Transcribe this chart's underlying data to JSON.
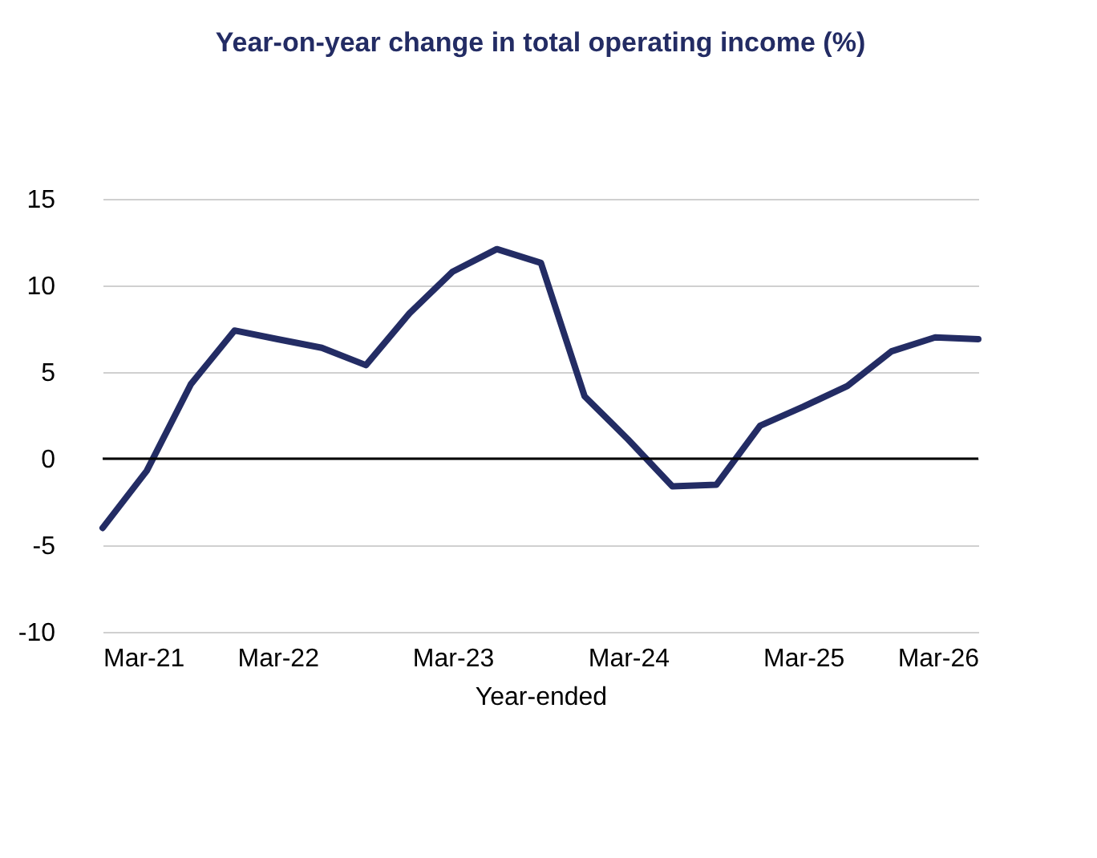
{
  "chart_data": {
    "type": "line",
    "title": "Year-on-year change in total operating income (%)",
    "xlabel": "Year-ended",
    "x": [
      "2021-03",
      "2021-06",
      "2021-09",
      "2021-12",
      "2022-03",
      "2022-06",
      "2022-09",
      "2022-12",
      "2023-03",
      "2023-06",
      "2023-09",
      "2023-12",
      "2024-03",
      "2024-06",
      "2024-09",
      "2024-12",
      "2025-03",
      "2025-06",
      "2025-09",
      "2025-12",
      "2026-03"
    ],
    "series": [
      {
        "color": "#232c64",
        "values": [
          -4.0,
          -0.7,
          4.3,
          7.4,
          6.9,
          6.4,
          5.4,
          8.4,
          10.8,
          12.1,
          11.3,
          3.6,
          1.1,
          -1.6,
          -1.5,
          1.9,
          3.0,
          4.2,
          6.2,
          7.0,
          6.9
        ]
      }
    ],
    "xlim": [
      "2021-03",
      "2026-03"
    ],
    "xticks": [
      {
        "value": "2021-03",
        "label": "Mar-21"
      },
      {
        "value": "2022-03",
        "label": "Mar-22"
      },
      {
        "value": "2023-03",
        "label": "Mar-23"
      },
      {
        "value": "2024-03",
        "label": "Mar-24"
      },
      {
        "value": "2025-03",
        "label": "Mar-25"
      },
      {
        "value": "2026-03",
        "label": "Mar-26"
      }
    ],
    "ylim": [
      -10,
      15
    ],
    "yticks": [
      -10,
      -5,
      0,
      5,
      10,
      15
    ],
    "grid": "y",
    "marker": "none",
    "line_style": "solid",
    "ref_lines": [
      {
        "axis": "y",
        "value": 0,
        "color": "#000000"
      }
    ]
  }
}
